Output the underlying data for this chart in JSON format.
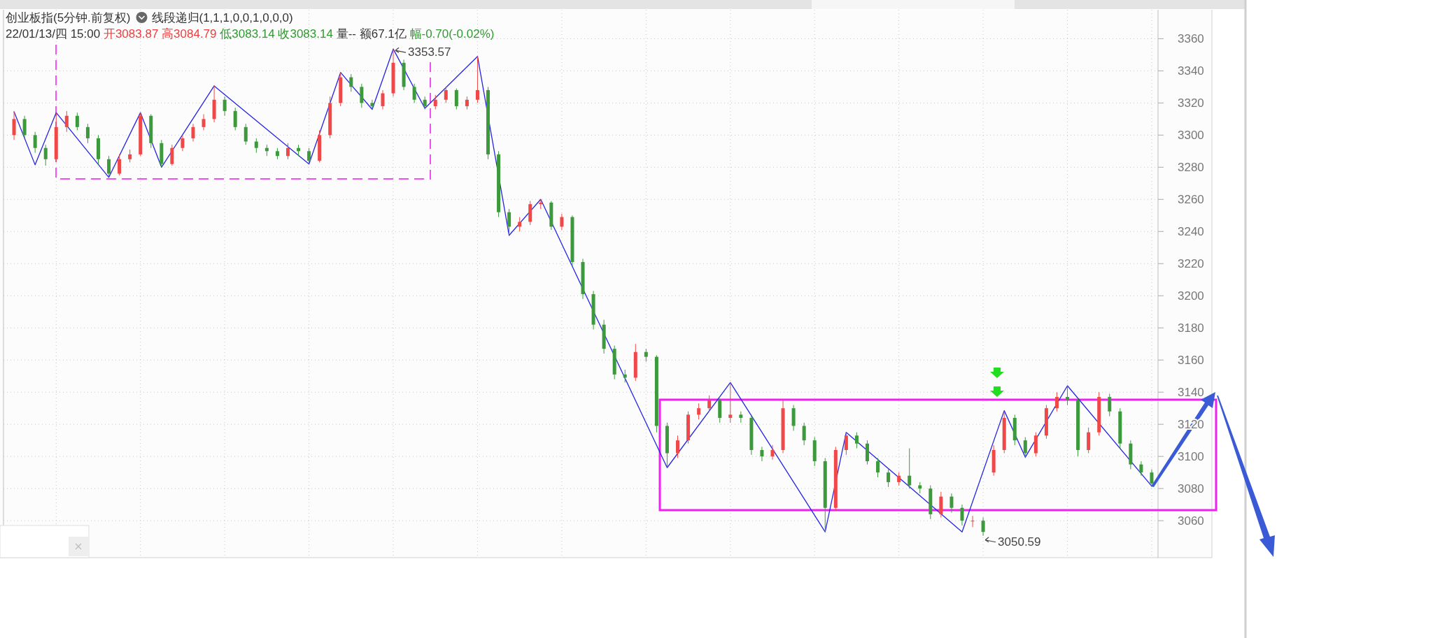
{
  "chart_data": {
    "type": "candlestick",
    "title": "创业板指(5分钟.前复权)",
    "subtitle": "22/01/13/四 15:00 开3083.87 高3084.79 低3083.14 收3083.14 量-- 额67.1亿 幅-0.70(-0.02%)",
    "annotations": [
      "线段递归(1,1,1,0,0,1,0,0,0)",
      "3353.57",
      "3050.59"
    ],
    "categories": [
      null,
      null,
      null,
      null,
      null,
      null,
      null,
      null,
      null,
      null,
      null,
      null,
      null,
      null,
      null,
      null,
      null,
      null,
      null,
      null,
      null,
      null,
      null,
      null,
      null,
      null,
      null,
      null,
      null,
      null,
      null,
      null,
      null,
      null,
      null,
      null,
      null,
      null,
      null,
      null,
      null,
      null,
      null,
      null,
      null,
      null,
      null,
      null,
      null,
      null,
      null,
      null,
      null,
      null,
      null,
      null,
      null,
      null,
      null,
      null,
      null,
      null,
      null,
      null,
      null,
      null,
      null,
      null,
      null,
      null,
      null,
      null,
      null,
      null,
      null,
      null,
      null,
      null,
      null,
      null,
      null,
      null,
      null,
      null,
      null,
      null,
      null,
      null,
      null,
      null,
      null,
      null,
      null,
      null,
      null,
      null,
      null,
      null,
      null,
      null,
      null,
      null,
      null,
      null,
      null,
      null,
      null,
      null,
      null
    ],
    "ohlc": [
      [
        3300,
        3315,
        3297,
        3310
      ],
      [
        3310,
        3312,
        3298,
        3300
      ],
      [
        3300,
        3302,
        3289,
        3292
      ],
      [
        3292,
        3294,
        3281,
        3285
      ],
      [
        3285,
        3314,
        3283,
        3305
      ],
      [
        3305,
        3315,
        3302,
        3312
      ],
      [
        3312,
        3314,
        3303,
        3305
      ],
      [
        3305,
        3307,
        3295,
        3298
      ],
      [
        3298,
        3300,
        3282,
        3285
      ],
      [
        3285,
        3287,
        3274,
        3276
      ],
      [
        3276,
        3288,
        3275,
        3285
      ],
      [
        3285,
        3291,
        3283,
        3288
      ],
      [
        3288,
        3314,
        3287,
        3312
      ],
      [
        3312,
        3313,
        3292,
        3295
      ],
      [
        3295,
        3297,
        3280,
        3282
      ],
      [
        3282,
        3294,
        3281,
        3292
      ],
      [
        3292,
        3300,
        3290,
        3298
      ],
      [
        3298,
        3307,
        3296,
        3305
      ],
      [
        3305,
        3313,
        3303,
        3310
      ],
      [
        3310,
        3331,
        3308,
        3322
      ],
      [
        3322,
        3324,
        3312,
        3315
      ],
      [
        3315,
        3317,
        3303,
        3305
      ],
      [
        3305,
        3307,
        3294,
        3296
      ],
      [
        3296,
        3298,
        3289,
        3292
      ],
      [
        3292,
        3294,
        3287,
        3290
      ],
      [
        3290,
        3292,
        3285,
        3287
      ],
      [
        3287,
        3295,
        3285,
        3292
      ],
      [
        3292,
        3294,
        3287,
        3290
      ],
      [
        3290,
        3292,
        3282,
        3284
      ],
      [
        3284,
        3303,
        3283,
        3300
      ],
      [
        3300,
        3324,
        3298,
        3320
      ],
      [
        3320,
        3339,
        3318,
        3336
      ],
      [
        3336,
        3338,
        3327,
        3330
      ],
      [
        3330,
        3332,
        3317,
        3320
      ],
      [
        3320,
        3322,
        3316,
        3318
      ],
      [
        3318,
        3328,
        3316,
        3326
      ],
      [
        3326,
        3353.57,
        3324,
        3345
      ],
      [
        3345,
        3347,
        3328,
        3330
      ],
      [
        3330,
        3332,
        3320,
        3322
      ],
      [
        3322,
        3324,
        3316,
        3318
      ],
      [
        3318,
        3325,
        3316,
        3322
      ],
      [
        3322,
        3330,
        3320,
        3328
      ],
      [
        3328,
        3329,
        3316,
        3318
      ],
      [
        3318,
        3324,
        3316,
        3322
      ],
      [
        3322,
        3349,
        3320,
        3328
      ],
      [
        3328,
        3330,
        3285,
        3288
      ],
      [
        3288,
        3290,
        3249,
        3252
      ],
      [
        3252,
        3254,
        3238,
        3243
      ],
      [
        3243,
        3249,
        3240,
        3246
      ],
      [
        3246,
        3259,
        3244,
        3257
      ],
      [
        3257,
        3260,
        3254,
        3258
      ],
      [
        3258,
        3259,
        3241,
        3243
      ],
      [
        3243,
        3251,
        3241,
        3249
      ],
      [
        3249,
        3250,
        3218,
        3221
      ],
      [
        3221,
        3223,
        3198,
        3201
      ],
      [
        3201,
        3203,
        3179,
        3182
      ],
      [
        3182,
        3185,
        3164,
        3167
      ],
      [
        3167,
        3169,
        3148,
        3151
      ],
      [
        3151,
        3154,
        3146,
        3149
      ],
      [
        3149,
        3170,
        3147,
        3165
      ],
      [
        3165,
        3167,
        3159,
        3162
      ],
      [
        3162,
        3163,
        3115,
        3119
      ],
      [
        3119,
        3121,
        3093,
        3102
      ],
      [
        3102,
        3113,
        3099,
        3110
      ],
      [
        3110,
        3128,
        3108,
        3126
      ],
      [
        3126,
        3133,
        3123,
        3130
      ],
      [
        3130,
        3138,
        3128,
        3135
      ],
      [
        3135,
        3136,
        3121,
        3124
      ],
      [
        3124,
        3146,
        3121,
        3126
      ],
      [
        3126,
        3128,
        3121,
        3124
      ],
      [
        3124,
        3126,
        3101,
        3104
      ],
      [
        3104,
        3106,
        3097,
        3100
      ],
      [
        3100,
        3107,
        3098,
        3104
      ],
      [
        3104,
        3135,
        3102,
        3130
      ],
      [
        3130,
        3132,
        3116,
        3119
      ],
      [
        3119,
        3121,
        3107,
        3110
      ],
      [
        3110,
        3112,
        3094,
        3097
      ],
      [
        3097,
        3099,
        3053,
        3068
      ],
      [
        3068,
        3106,
        3066,
        3104
      ],
      [
        3104,
        3115,
        3101,
        3113
      ],
      [
        3113,
        3115,
        3105,
        3108
      ],
      [
        3108,
        3110,
        3095,
        3097
      ],
      [
        3097,
        3099,
        3087,
        3090
      ],
      [
        3090,
        3092,
        3081,
        3084
      ],
      [
        3084,
        3090,
        3082,
        3088
      ],
      [
        3088,
        3105,
        3080,
        3082
      ],
      [
        3082,
        3084,
        3077,
        3080
      ],
      [
        3080,
        3082,
        3061,
        3064
      ],
      [
        3064,
        3078,
        3062,
        3075
      ],
      [
        3075,
        3077,
        3065,
        3068
      ],
      [
        3068,
        3070,
        3057,
        3060
      ],
      [
        3060,
        3063,
        3056,
        3060
      ],
      [
        3060,
        3062,
        3050.59,
        3053
      ],
      [
        3090,
        3107,
        3088,
        3104
      ],
      [
        3104,
        3128,
        3102,
        3124
      ],
      [
        3124,
        3126,
        3107,
        3110
      ],
      [
        3110,
        3112,
        3099,
        3102
      ],
      [
        3102,
        3115,
        3100,
        3113
      ],
      [
        3113,
        3132,
        3111,
        3130
      ],
      [
        3130,
        3140,
        3128,
        3137
      ],
      [
        3137,
        3144,
        3132,
        3135
      ],
      [
        3135,
        3136,
        3100,
        3104
      ],
      [
        3104,
        3118,
        3102,
        3115
      ],
      [
        3115,
        3140,
        3113,
        3137
      ],
      [
        3137,
        3139,
        3125,
        3128
      ],
      [
        3128,
        3130,
        3105,
        3108
      ],
      [
        3108,
        3110,
        3092,
        3095
      ],
      [
        3095,
        3097,
        3088,
        3090
      ],
      [
        3090,
        3092,
        3081,
        3083.14
      ]
    ],
    "colors": [
      "#f04848",
      "#3c9a3c",
      "#3c9a3c",
      "#3c9a3c",
      "#f04848",
      "#f04848",
      "#3c9a3c",
      "#3c9a3c",
      "#3c9a3c",
      "#3c9a3c",
      "#f04848",
      "#f04848",
      "#f04848",
      "#3c9a3c",
      "#3c9a3c",
      "#f04848",
      "#f04848",
      "#f04848",
      "#f04848",
      "#f04848",
      "#3c9a3c",
      "#3c9a3c",
      "#3c9a3c",
      "#3c9a3c",
      "#3c9a3c",
      "#3c9a3c",
      "#f04848",
      "#3c9a3c",
      "#3c9a3c",
      "#f04848",
      "#f04848",
      "#f04848",
      "#3c9a3c",
      "#3c9a3c",
      "#3c9a3c",
      "#f04848",
      "#f04848",
      "#3c9a3c",
      "#3c9a3c",
      "#3c9a3c",
      "#f04848",
      "#f04848",
      "#3c9a3c",
      "#f04848",
      "#f04848",
      "#3c9a3c",
      "#3c9a3c",
      "#3c9a3c",
      "#f04848",
      "#f04848",
      "#f04848",
      "#3c9a3c",
      "#f04848",
      "#3c9a3c",
      "#3c9a3c",
      "#3c9a3c",
      "#3c9a3c",
      "#3c9a3c",
      "#3c9a3c",
      "#f04848",
      "#3c9a3c",
      "#3c9a3c",
      "#3c9a3c",
      "#f04848",
      "#f04848",
      "#f04848",
      "#f04848",
      "#3c9a3c",
      "#f04848",
      "#3c9a3c",
      "#3c9a3c",
      "#3c9a3c",
      "#f04848",
      "#f04848",
      "#3c9a3c",
      "#3c9a3c",
      "#3c9a3c",
      "#3c9a3c",
      "#f04848",
      "#f04848",
      "#3c9a3c",
      "#3c9a3c",
      "#3c9a3c",
      "#3c9a3c",
      "#f04848",
      "#3c9a3c",
      "#3c9a3c",
      "#3c9a3c",
      "#f04848",
      "#3c9a3c",
      "#3c9a3c",
      "#f04848",
      "#3c9a3c",
      "#f04848",
      "#f04848",
      "#3c9a3c",
      "#3c9a3c",
      "#f04848",
      "#f04848",
      "#f04848",
      "#3c9a3c",
      "#3c9a3c",
      "#f04848",
      "#f04848",
      "#3c9a3c",
      "#3c9a3c",
      "#3c9a3c",
      "#3c9a3c",
      "#3c9a3c"
    ],
    "series": [
      {
        "type": "line",
        "color": "#2424e6",
        "values": [
          3314.6,
          null,
          3281.5,
          null,
          3314,
          null,
          null,
          null,
          null,
          3273.7,
          null,
          null,
          3314,
          null,
          3280,
          null,
          null,
          null,
          null,
          3330.6,
          null,
          null,
          null,
          null,
          null,
          null,
          null,
          null,
          3282,
          null,
          null,
          3339,
          null,
          null,
          3316,
          null,
          3353.57,
          null,
          null,
          3316.7,
          null,
          null,
          null,
          null,
          3349,
          null,
          null,
          3237.6,
          null,
          null,
          3260,
          null,
          null,
          null,
          null,
          null,
          null,
          null,
          null,
          null,
          null,
          null,
          3093,
          null,
          null,
          null,
          null,
          null,
          3146,
          null,
          null,
          null,
          null,
          null,
          null,
          null,
          null,
          3053,
          null,
          3115,
          null,
          null,
          null,
          null,
          null,
          null,
          null,
          null,
          null,
          null,
          3053,
          null,
          null,
          null,
          3128.5,
          null,
          3099.5,
          null,
          null,
          null,
          3144,
          null,
          null,
          null,
          null,
          null,
          null,
          null,
          3081.5
        ]
      }
    ],
    "ylim": [
      3037,
      3378
    ],
    "yticks": [
      3060,
      3080,
      3100,
      3120,
      3140,
      3160,
      3180,
      3200,
      3220,
      3240,
      3260,
      3280,
      3300,
      3320,
      3340,
      3360
    ],
    "grid": true,
    "tick_labels": "y"
  }
}
